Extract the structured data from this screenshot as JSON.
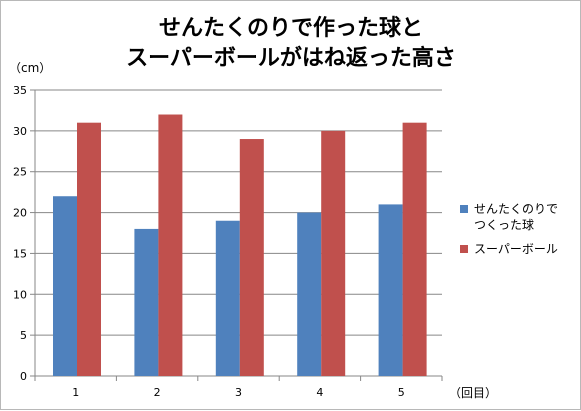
{
  "chart_data": {
    "type": "bar",
    "title": [
      "せんたくのりで作った球と",
      "スーパーボールがはね返った高さ"
    ],
    "y_unit_label": "（cm）",
    "x_unit_label": "（回目）",
    "categories": [
      "1",
      "2",
      "3",
      "4",
      "5"
    ],
    "series": [
      {
        "name": [
          "せんたくのりで",
          "つくった球"
        ],
        "values": [
          22,
          18,
          19,
          20,
          21
        ],
        "color": "#4f81bd"
      },
      {
        "name": [
          "スーパーボール"
        ],
        "values": [
          31,
          32,
          29,
          30,
          31
        ],
        "color": "#c0504d"
      }
    ],
    "ylim": [
      0,
      35
    ],
    "yticks": [
      0,
      5,
      10,
      15,
      20,
      25,
      30,
      35
    ],
    "grid": true,
    "legend": "right"
  }
}
